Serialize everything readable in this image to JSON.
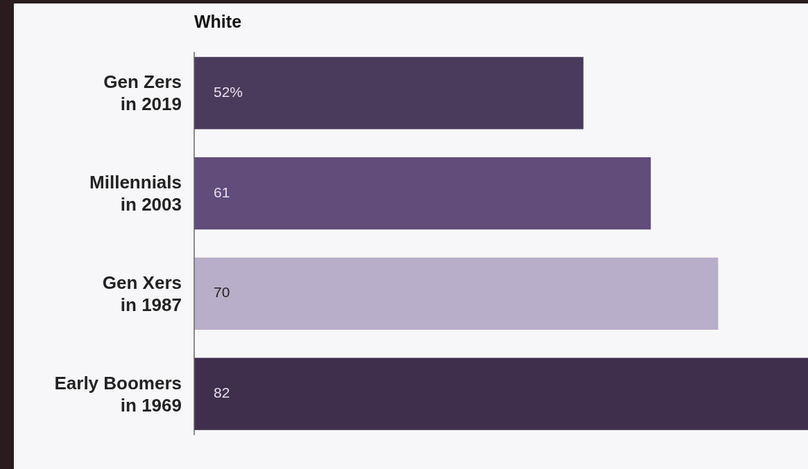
{
  "chart_data": {
    "type": "bar",
    "orientation": "horizontal",
    "title": "White",
    "categories": [
      "Gen Zers\nin 2019",
      "Millennials\nin 2003",
      "Gen Xers\nin 1987",
      "Early Boomers\nin 1969"
    ],
    "values": [
      52,
      61,
      70,
      82
    ],
    "value_labels": [
      "52%",
      "61",
      "70",
      "82"
    ],
    "colors": [
      "#4a3a5b",
      "#614c7a",
      "#b9aec9",
      "#3f2f4d"
    ]
  }
}
